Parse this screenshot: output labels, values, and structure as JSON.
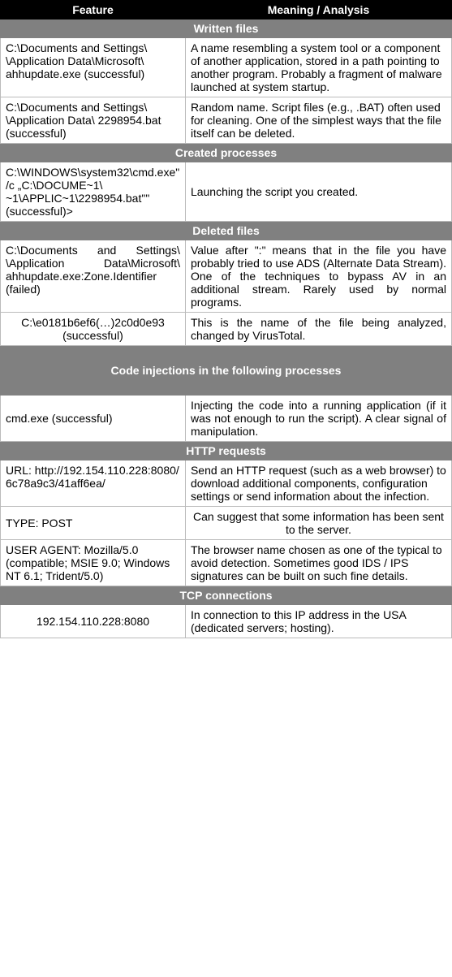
{
  "header": {
    "feature": "Feature",
    "meaning": "Meaning / Analysis"
  },
  "sections": {
    "written_files": "Written files",
    "created_processes": "Created processes",
    "deleted_files": "Deleted files",
    "code_injections": "Code injections in the following processes",
    "http_requests": "HTTP requests",
    "tcp_connections": "TCP connections"
  },
  "rows": {
    "wf1": {
      "feature": "C:\\Documents and Settings\\ \\Application Data\\Microsoft\\ ahhupdate.exe (successful)",
      "meaning": "A name resembling a system tool or a component of another application, stored in a path pointing to another program. Probably a fragment of malware launched at system startup."
    },
    "wf2": {
      "feature": "C:\\Documents and Settings\\ \\Application Data\\ 2298954.bat (successful)",
      "meaning": "Random name. Script files (e.g., .BAT) often used for cleaning. One of the simplest ways that the file itself can be deleted."
    },
    "cp1": {
      "feature": "C:\\WINDOWS\\system32\\cmd.exe\" /c „C:\\DOCUME~1\\ ~1\\APPLIC~1\\2298954.bat\"\" (successful)>",
      "meaning": "Launching the script you created."
    },
    "df1": {
      "feature": "C:\\Documents and Settings\\ \\Application Data\\Microsoft\\ ahhupdate.exe:Zone.Identifier (failed)",
      "meaning": "Value after \":\" means that in the file you have probably tried to use ADS (Alternate Data Stream). One of the techniques to bypass AV in an additional stream. Rarely used by normal programs."
    },
    "df2": {
      "feature": "C:\\e0181b6ef6(…)2c0d0e93 (successful)",
      "meaning": "This is the name of the file being analyzed, changed by VirusTotal."
    },
    "ci1": {
      "feature": "cmd.exe (successful)",
      "meaning": "Injecting the code into a running application (if it was not enough to run the script). A clear signal of manipulation."
    },
    "hr1": {
      "feature": "URL: http://192.154.110.228:8080/ 6c78a9c3/41aff6ea/",
      "meaning": "Send an HTTP request (such as a web browser) to download additional components, configuration settings or send information about the infection."
    },
    "hr2": {
      "feature": "TYPE: POST",
      "meaning": "Can suggest that some information has been sent to the server."
    },
    "hr3": {
      "feature": "USER AGENT: Mozilla/5.0 (compatible; MSIE 9.0; Windows NT 6.1; Trident/5.0)",
      "meaning": "The browser name chosen as one of the typical to avoid detection. Sometimes good IDS / IPS signatures can be built on such fine details."
    },
    "tc1": {
      "feature": "192.154.110.228:8080",
      "meaning": "In connection to this IP address in the USA (dedicated servers; hosting)."
    }
  }
}
